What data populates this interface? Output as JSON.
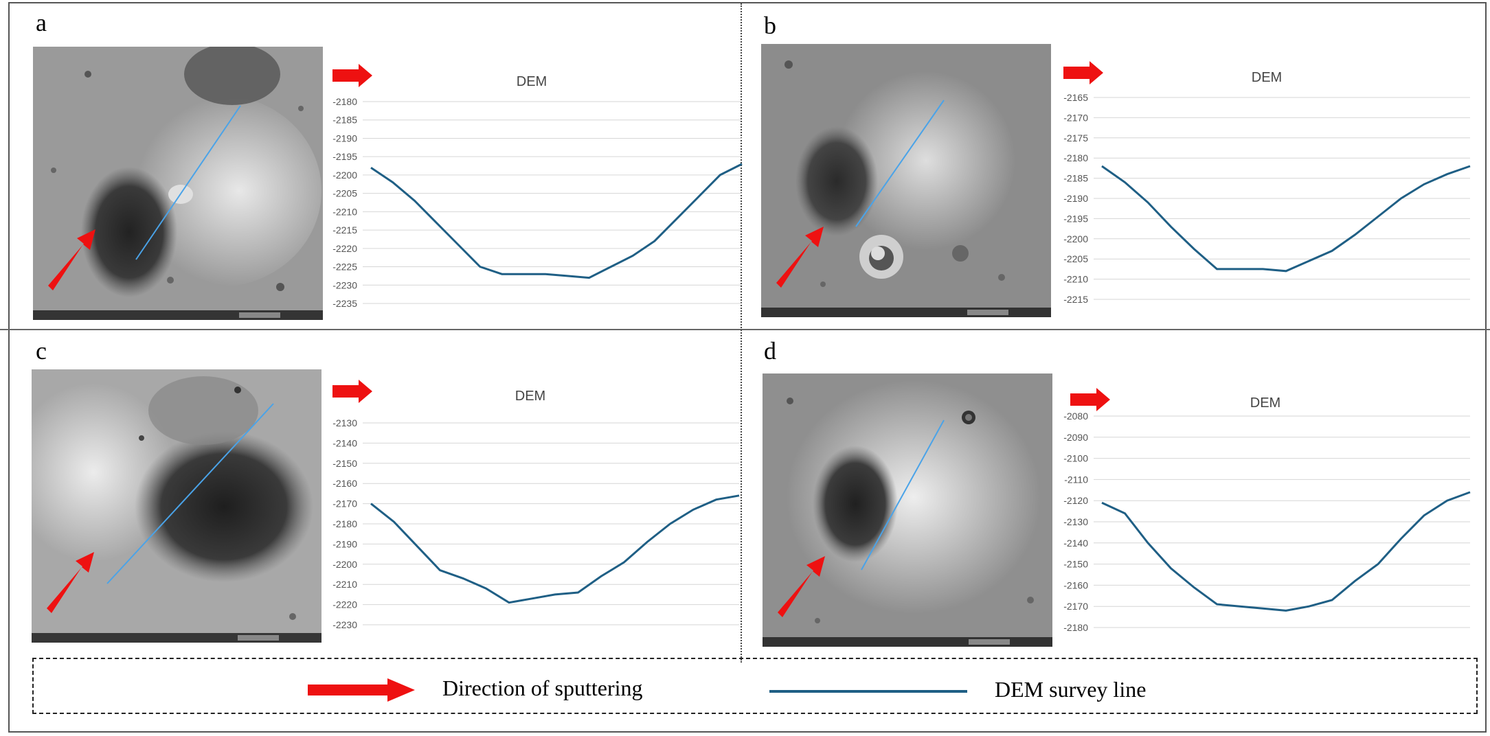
{
  "colors": {
    "series_line": "#1f5f85",
    "arrow": "#ee1111",
    "survey_line": "#4aa3e8"
  },
  "panels": [
    {
      "id": "a",
      "label": "a"
    },
    {
      "id": "b",
      "label": "b"
    },
    {
      "id": "c",
      "label": "c"
    },
    {
      "id": "d",
      "label": "d"
    }
  ],
  "legend": {
    "arrow_label": "Direction of sputtering",
    "line_label": "DEM survey line"
  },
  "chart_data": [
    {
      "panel": "a",
      "type": "line",
      "title": "DEM",
      "ylim": [
        -2235,
        -2180
      ],
      "yticks": [
        -2180,
        -2185,
        -2190,
        -2195,
        -2200,
        -2205,
        -2210,
        -2215,
        -2220,
        -2225,
        -2230,
        -2235
      ],
      "grid": true,
      "series": [
        {
          "x": [
            0,
            2,
            4,
            6,
            8,
            10,
            12,
            14,
            16,
            18,
            20,
            22,
            24,
            26,
            28,
            30,
            32,
            34
          ],
          "values": [
            -2198,
            -2202,
            -2207,
            -2213,
            -2219,
            -2225,
            -2227,
            -2227,
            -2227,
            -2227.5,
            -2228,
            -2225,
            -2222,
            -2218,
            -2212,
            -2206,
            -2200,
            -2197
          ]
        }
      ]
    },
    {
      "panel": "b",
      "type": "line",
      "title": "DEM",
      "ylim": [
        -2215,
        -2165
      ],
      "yticks": [
        -2165,
        -2170,
        -2175,
        -2180,
        -2185,
        -2190,
        -2195,
        -2200,
        -2205,
        -2210,
        -2215
      ],
      "grid": true,
      "series": [
        {
          "x": [
            0,
            2,
            4,
            6,
            8,
            10,
            12,
            14,
            16,
            18,
            20,
            22,
            24,
            26,
            28,
            30,
            32
          ],
          "values": [
            -2182,
            -2186,
            -2191,
            -2197,
            -2202.5,
            -2207.5,
            -2207.5,
            -2207.5,
            -2208,
            -2205.5,
            -2203,
            -2199,
            -2194.5,
            -2190,
            -2186.5,
            -2184,
            -2182
          ]
        }
      ]
    },
    {
      "panel": "c",
      "type": "line",
      "title": "DEM",
      "ylim": [
        -2235,
        -2125
      ],
      "yticks": [
        -2130,
        -2140,
        -2150,
        -2160,
        -2170,
        -2180,
        -2190,
        -2200,
        -2210,
        -2220,
        -2230
      ],
      "grid": true,
      "series": [
        {
          "x": [
            0,
            2,
            4,
            6,
            8,
            10,
            12,
            14,
            16,
            18,
            20,
            22,
            24,
            26,
            28,
            30,
            32
          ],
          "values": [
            -2170,
            -2179,
            -2191,
            -2203,
            -2207,
            -2212,
            -2219,
            -2217,
            -2215,
            -2214,
            -2206,
            -2199,
            -2189,
            -2180,
            -2173,
            -2168,
            -2166
          ]
        }
      ]
    },
    {
      "panel": "d",
      "type": "line",
      "title": "DEM",
      "ylim": [
        -2185,
        -2075
      ],
      "yticks": [
        -2080,
        -2090,
        -2100,
        -2110,
        -2120,
        -2130,
        -2140,
        -2150,
        -2160,
        -2170,
        -2180
      ],
      "grid": true,
      "series": [
        {
          "x": [
            0,
            2,
            4,
            6,
            8,
            10,
            12,
            14,
            16,
            18,
            20,
            22,
            24,
            26,
            28,
            30,
            32
          ],
          "values": [
            -2121,
            -2126,
            -2140,
            -2152,
            -2161,
            -2169,
            -2170,
            -2171,
            -2172,
            -2170,
            -2167,
            -2158,
            -2150,
            -2138,
            -2127,
            -2120,
            -2116
          ]
        }
      ]
    }
  ]
}
